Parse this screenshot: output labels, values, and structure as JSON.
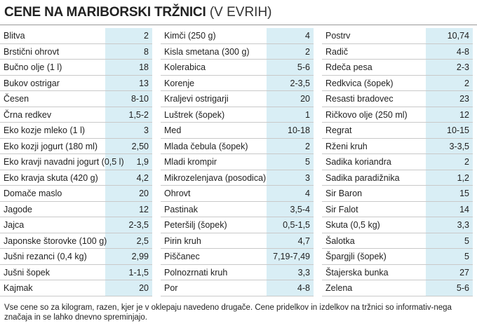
{
  "title": {
    "main": "CENE NA MARIBORSKI TRŽNICI",
    "sub": "(V EVRIH)"
  },
  "columns": [
    {
      "rows": [
        {
          "name": "Blitva",
          "price": "2"
        },
        {
          "name": "Brstični ohrovt",
          "price": "8"
        },
        {
          "name": "Bučno olje (1 l)",
          "price": "18"
        },
        {
          "name": "Bukov ostrigar",
          "price": "13"
        },
        {
          "name": "Česen",
          "price": "8-10"
        },
        {
          "name": "Črna redkev",
          "price": "1,5-2"
        },
        {
          "name": "Eko kozje mleko (1 l)",
          "price": "3"
        },
        {
          "name": "Eko kozji jogurt (180 ml)",
          "price": "2,50"
        },
        {
          "name": "Eko kravji navadni jogurt (0,5 l)",
          "price": "1,9"
        },
        {
          "name": "Eko kravja skuta (420 g)",
          "price": "4,2"
        },
        {
          "name": "Domače maslo",
          "price": "20"
        },
        {
          "name": "Jagode",
          "price": "12"
        },
        {
          "name": "Jajca",
          "price": "2-3,5"
        },
        {
          "name": "Japonske štorovke (100 g)",
          "price": "2,5"
        },
        {
          "name": "Jušni rezanci (0,4 kg)",
          "price": "2,99"
        },
        {
          "name": "Jušni šopek",
          "price": "1-1,5"
        },
        {
          "name": "Kajmak",
          "price": "20"
        }
      ]
    },
    {
      "rows": [
        {
          "name": "Kimči (250 g)",
          "price": "4"
        },
        {
          "name": "Kisla smetana (300 g)",
          "price": "2"
        },
        {
          "name": "Kolerabica",
          "price": "5-6"
        },
        {
          "name": "Korenje",
          "price": "2-3,5"
        },
        {
          "name": "Kraljevi ostrigarji",
          "price": "20"
        },
        {
          "name": "Luštrek (šopek)",
          "price": "1"
        },
        {
          "name": "Med",
          "price": "10-18"
        },
        {
          "name": "Mlada čebula (šopek)",
          "price": "2"
        },
        {
          "name": "Mladi krompir",
          "price": "5"
        },
        {
          "name": "Mikrozelenjava (posodica)",
          "price": "3"
        },
        {
          "name": "Ohrovt",
          "price": "4"
        },
        {
          "name": "Pastinak",
          "price": "3,5-4"
        },
        {
          "name": "Peteršilj (šopek)",
          "price": "0,5-1,5"
        },
        {
          "name": "Pirin kruh",
          "price": "4,7"
        },
        {
          "name": "Piščanec",
          "price": "7,19-7,49"
        },
        {
          "name": "Polnozrnati kruh",
          "price": "3,3"
        },
        {
          "name": "Por",
          "price": "4-8"
        }
      ]
    },
    {
      "rows": [
        {
          "name": "Postrv",
          "price": "10,74"
        },
        {
          "name": "Radič",
          "price": "4-8"
        },
        {
          "name": "Rdeča pesa",
          "price": "2-3"
        },
        {
          "name": "Redkvica (šopek)",
          "price": "2"
        },
        {
          "name": "Resasti bradovec",
          "price": "23"
        },
        {
          "name": "Ričkovo olje (250 ml)",
          "price": "12"
        },
        {
          "name": "Regrat",
          "price": "10-15"
        },
        {
          "name": "Rženi kruh",
          "price": "3-3,5"
        },
        {
          "name": "Sadika koriandra",
          "price": "2"
        },
        {
          "name": "Sadika paradižnika",
          "price": "1,2"
        },
        {
          "name": "Sir Baron",
          "price": "15"
        },
        {
          "name": "Sir Falot",
          "price": "14"
        },
        {
          "name": "Skuta (0,5 kg)",
          "price": "3,3"
        },
        {
          "name": "Šalotka",
          "price": "5"
        },
        {
          "name": "Špargjli (šopek)",
          "price": "5"
        },
        {
          "name": "Štajerska bunka",
          "price": "27"
        },
        {
          "name": "Zelena",
          "price": "5-6"
        }
      ]
    }
  ],
  "note": "Vse cene so za kilogram, razen, kjer je v oklepaju navedeno drugače. Cene pridelkov in izdelkov na tržnici so informativ-nega značaja in se lahko dnevno spreminjajo.",
  "colors": {
    "price_highlight": "#d9eef5",
    "row_divider": "#c9c9c9"
  }
}
